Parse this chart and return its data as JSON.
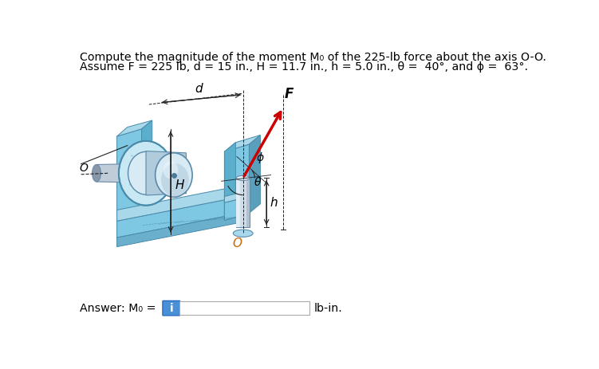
{
  "title_line1": "Compute the magnitude of the moment M₀ of the 225-lb force about the axis O-O.",
  "title_line2": "Assume F = 225 lb, d = 15 in., H = 11.7 in., h = 5.0 in., θ =  40°, and ϕ =  63°.",
  "answer_unit": "lb-in.",
  "info_button_color": "#4a90d9",
  "info_button_text": "i",
  "body_light": "#a8d8ea",
  "body_mid": "#7ec8e3",
  "body_dark": "#5ab0cc",
  "body_darker": "#4090b0",
  "bg_blue": "#c8e8f4",
  "cylinder_light": "#d8eaf4",
  "cylinder_mid": "#b0ccdc",
  "cylinder_dark": "#8ab0c8",
  "pin_light": "#d0dce8",
  "pin_dark": "#90a8bc",
  "axle_light": "#c0ccd8",
  "axle_dark": "#8898a8",
  "background": "#ffffff",
  "force_color": "#cc0000",
  "dim_color": "#222222",
  "text_color": "#000000",
  "orange_text": "#cc6600"
}
